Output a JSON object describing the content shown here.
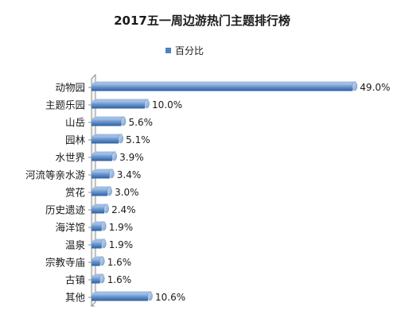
{
  "chart_data": {
    "type": "bar",
    "orientation": "horizontal",
    "title": "2017五一周边游热门主题排行榜",
    "legend": {
      "position": "top-right"
    },
    "series": [
      {
        "name": "百分比",
        "color": "#4f81bd",
        "values": [
          49.0,
          10.0,
          5.6,
          5.1,
          3.9,
          3.4,
          3.0,
          2.4,
          1.9,
          1.9,
          1.6,
          1.6,
          10.6
        ],
        "labels": [
          "49.0%",
          "10.0%",
          "5.6%",
          "5.1%",
          "3.9%",
          "3.4%",
          "3.0%",
          "2.4%",
          "1.9%",
          "1.9%",
          "1.6%",
          "1.6%",
          "10.6%"
        ]
      }
    ],
    "categories": [
      "动物园",
      "主题乐园",
      "山岳",
      "园林",
      "水世界",
      "河流等亲水游",
      "赏花",
      "历史遗迹",
      "海洋馆",
      "温泉",
      "宗教寺庙",
      "古镇",
      "其他"
    ],
    "xlim": [
      0,
      50
    ],
    "grid": false,
    "style": "3d-cylinder"
  }
}
